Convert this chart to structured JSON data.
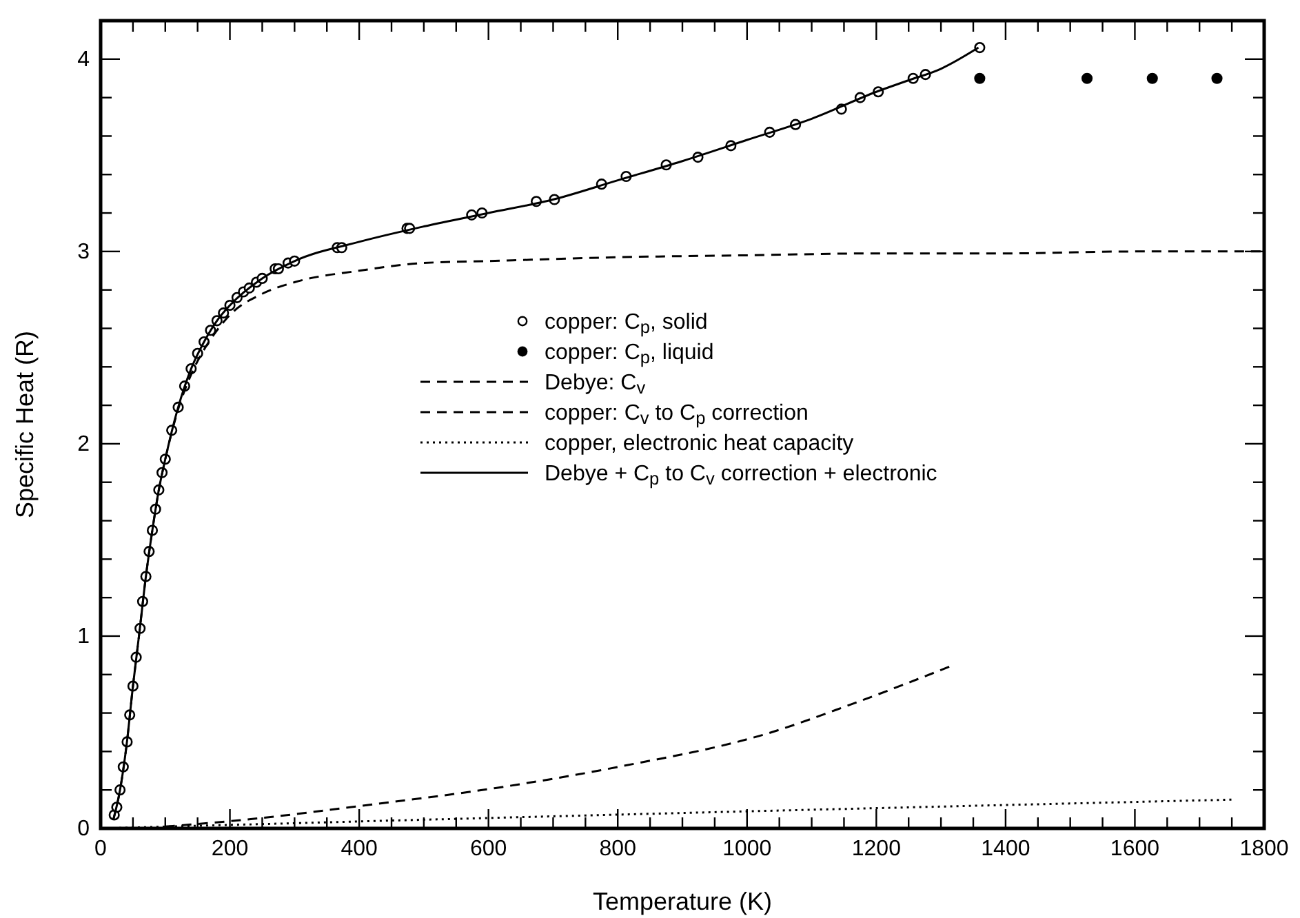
{
  "chart_data": {
    "type": "scatter",
    "xlabel": "Temperature (K)",
    "ylabel": "Specific Heat (R)",
    "xlim": [
      0,
      1800
    ],
    "ylim": [
      0,
      4.2
    ],
    "xticks": [
      0,
      {
        "value": 50,
        "label": null
      },
      {
        "value": 100,
        "label": null
      },
      {
        "value": 150,
        "label": null
      },
      200,
      {
        "value": 250,
        "label": null
      },
      {
        "value": 300,
        "label": null
      },
      {
        "value": 350,
        "label": null
      },
      400,
      {
        "value": 450,
        "label": null
      },
      {
        "value": 500,
        "label": null
      },
      {
        "value": 550,
        "label": null
      },
      600,
      {
        "value": 650,
        "label": null
      },
      {
        "value": 700,
        "label": null
      },
      {
        "value": 750,
        "label": null
      },
      800,
      {
        "value": 850,
        "label": null
      },
      {
        "value": 900,
        "label": null
      },
      {
        "value": 950,
        "label": null
      },
      1000,
      {
        "value": 1050,
        "label": null
      },
      {
        "value": 1100,
        "label": null
      },
      {
        "value": 1150,
        "label": null
      },
      1200,
      {
        "value": 1250,
        "label": null
      },
      {
        "value": 1300,
        "label": null
      },
      {
        "value": 1350,
        "label": null
      },
      1400,
      {
        "value": 1450,
        "label": null
      },
      {
        "value": 1500,
        "label": null
      },
      {
        "value": 1550,
        "label": null
      },
      1600,
      {
        "value": 1650,
        "label": null
      },
      {
        "value": 1700,
        "label": null
      },
      {
        "value": 1750,
        "label": null
      },
      1800
    ],
    "yticks": [
      0,
      {
        "value": 0.2,
        "label": null
      },
      {
        "value": 0.4,
        "label": null
      },
      {
        "value": 0.6,
        "label": null
      },
      {
        "value": 0.8,
        "label": null
      },
      1,
      {
        "value": 1.2,
        "label": null
      },
      {
        "value": 1.4,
        "label": null
      },
      {
        "value": 1.6,
        "label": null
      },
      {
        "value": 1.8,
        "label": null
      },
      2,
      {
        "value": 2.2,
        "label": null
      },
      {
        "value": 2.4,
        "label": null
      },
      {
        "value": 2.6,
        "label": null
      },
      {
        "value": 2.8,
        "label": null
      },
      3,
      {
        "value": 3.2,
        "label": null
      },
      {
        "value": 3.4,
        "label": null
      },
      {
        "value": 3.6,
        "label": null
      },
      {
        "value": 3.8,
        "label": null
      },
      4
    ],
    "grid": false,
    "legend": "center",
    "series": [
      {
        "name": "copper: C$_{p}$, solid",
        "marker": "circle",
        "color": "#ffffff",
        "x": [
          21,
          25,
          30,
          35,
          41,
          45,
          50,
          55,
          61,
          65,
          70,
          75,
          80,
          85,
          90,
          95,
          100,
          110,
          120,
          130,
          140,
          150,
          160,
          170,
          180,
          190,
          200,
          211,
          221,
          230,
          241,
          250,
          270,
          275,
          290,
          300,
          366,
          373,
          474,
          478,
          574,
          590,
          674,
          702,
          775,
          813,
          875,
          924,
          975,
          1035,
          1075,
          1146,
          1175,
          1203,
          1257,
          1276,
          1360
        ],
        "values": [
          0.07,
          0.11,
          0.2,
          0.32,
          0.45,
          0.59,
          0.74,
          0.89,
          1.04,
          1.18,
          1.31,
          1.44,
          1.55,
          1.66,
          1.76,
          1.85,
          1.92,
          2.07,
          2.19,
          2.3,
          2.39,
          2.47,
          2.53,
          2.59,
          2.64,
          2.68,
          2.72,
          2.76,
          2.79,
          2.81,
          2.84,
          2.86,
          2.91,
          2.91,
          2.94,
          2.95,
          3.02,
          3.02,
          3.12,
          3.12,
          3.19,
          3.2,
          3.26,
          3.27,
          3.35,
          3.39,
          3.45,
          3.49,
          3.55,
          3.62,
          3.66,
          3.74,
          3.8,
          3.83,
          3.9,
          3.92,
          4.06
        ]
      },
      {
        "name": "copper: C$_{p}$, liquid",
        "marker": "circle",
        "color": "#000000",
        "x": [
          1360,
          1526,
          1627,
          1727
        ],
        "values": [
          3.9,
          3.9,
          3.9,
          3.9
        ]
      },
      {
        "name": "Debye: C$_{v}$",
        "type": "line",
        "marker": "none",
        "line_style": "dashed",
        "color": "#000000",
        "x": [
          20,
          30,
          40,
          50,
          60,
          70,
          80,
          90,
          100,
          120,
          140,
          160,
          180,
          200,
          250,
          300,
          400,
          500,
          600,
          800,
          1000,
          1200,
          1400,
          1600,
          1800
        ],
        "values": [
          0.05,
          0.2,
          0.43,
          0.74,
          1.02,
          1.31,
          1.55,
          1.76,
          1.92,
          2.18,
          2.36,
          2.49,
          2.59,
          2.67,
          2.78,
          2.84,
          2.9,
          2.94,
          2.95,
          2.97,
          2.98,
          2.99,
          2.99,
          3.0,
          3.0
        ]
      },
      {
        "name": "copper: C$_{v}$ to C$_{p}$ correction",
        "type": "line",
        "marker": "none",
        "line_style": "dashed",
        "color": "#000000",
        "x": [
          100,
          208,
          410,
          611,
          801,
          1038,
          1157,
          1320
        ],
        "values": [
          0.01,
          0.04,
          0.12,
          0.21,
          0.32,
          0.5,
          0.64,
          0.85
        ]
      },
      {
        "name": "copper, electronic heat capacity",
        "type": "line",
        "marker": "none",
        "line_style": "dotted",
        "color": "#000000",
        "x": [
          0,
          1015,
          1755
        ],
        "values": [
          0,
          0.09,
          0.15
        ]
      },
      {
        "name": "Debye + C$_{p}$ to C$_{v}$ correction + electronic",
        "type": "line",
        "marker": "none",
        "line_style": "solid",
        "color": "#000000",
        "x": [
          20,
          30,
          40,
          50,
          60,
          70,
          80,
          90,
          100,
          120,
          140,
          160,
          180,
          200,
          250,
          300,
          400,
          500,
          600,
          700,
          800,
          900,
          1000,
          1100,
          1200,
          1250,
          1300,
          1358
        ],
        "values": [
          0.05,
          0.2,
          0.43,
          0.74,
          1.02,
          1.31,
          1.55,
          1.76,
          1.92,
          2.19,
          2.39,
          2.53,
          2.64,
          2.72,
          2.86,
          2.95,
          3.05,
          3.13,
          3.2,
          3.27,
          3.37,
          3.47,
          3.58,
          3.69,
          3.83,
          3.89,
          3.95,
          4.06
        ]
      }
    ]
  }
}
